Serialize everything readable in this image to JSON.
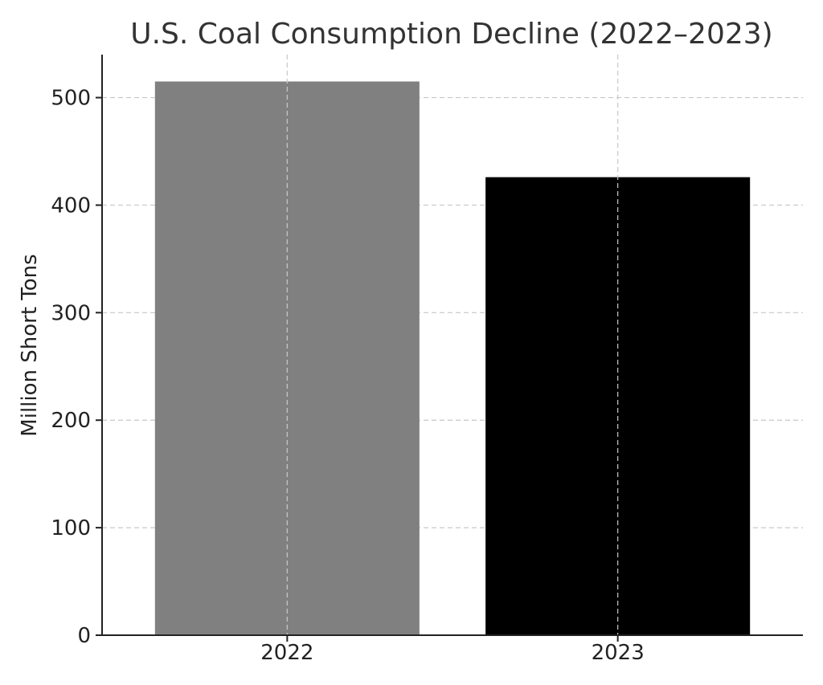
{
  "chart_data": {
    "type": "bar",
    "title": "U.S. Coal Consumption Decline (2022–2023)",
    "xlabel": "",
    "ylabel": "Million Short Tons",
    "categories": [
      "2022",
      "2023"
    ],
    "values": [
      515,
      426
    ],
    "colors": [
      "#808080",
      "#000000"
    ],
    "ylim": [
      0,
      540
    ],
    "yticks": [
      0,
      100,
      200,
      300,
      400,
      500
    ],
    "grid": true
  }
}
